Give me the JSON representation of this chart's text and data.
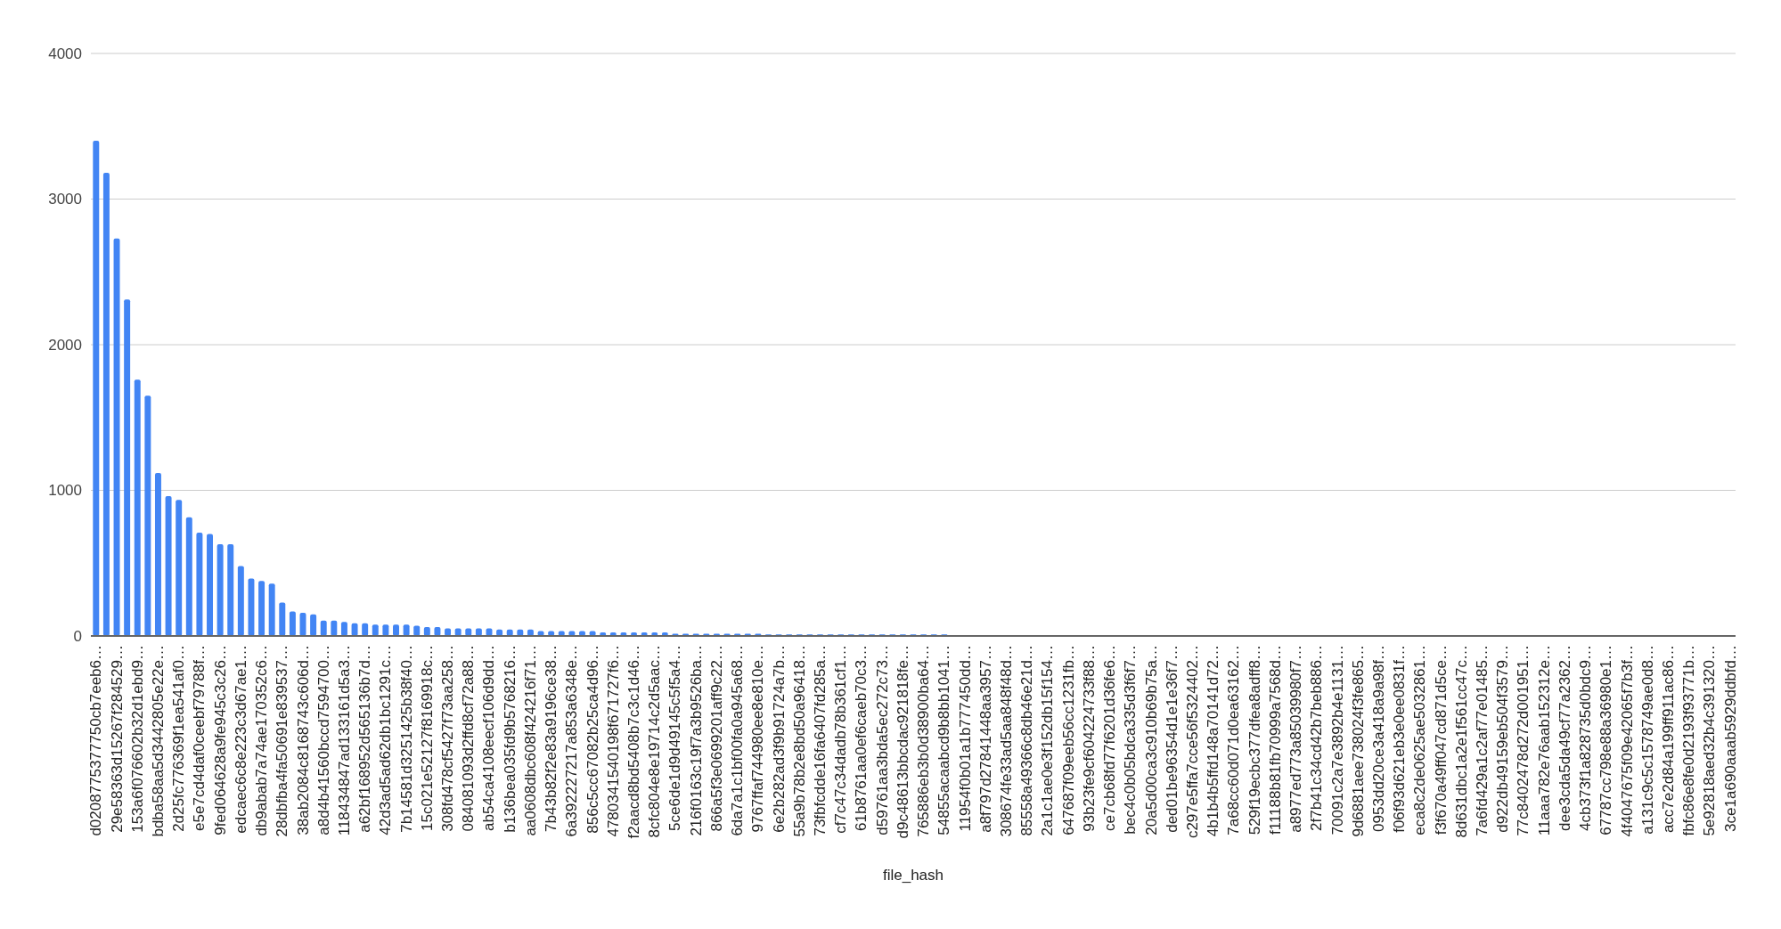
{
  "chart_data": {
    "type": "bar",
    "xlabel": "file_hash",
    "color": "#4285f4",
    "grid": "y",
    "ylim": [
      0,
      4000
    ],
    "yticks": [
      0,
      1000,
      2000,
      3000,
      4000
    ],
    "categories": [
      "d0208775377750cb7eeb6…",
      null,
      "29e58363d15267f284529…",
      null,
      "153a6f076602b32d1ebd9…",
      null,
      "bdba58aa5d3442805e22e…",
      null,
      "2d25fc776369f1ea541af0…",
      null,
      "e5e7cd4daf0ceebf79788f…",
      null,
      "9fed064628a9fe945c3c26…",
      null,
      "edcaec6c8e223c3d67ae1…",
      null,
      "db9abab7a74ae170352c6…",
      null,
      "28dbfba4fa50691e839537…",
      null,
      "38ab2084c8168743c606d…",
      null,
      "a8d4b41560bccd7594700…",
      null,
      "118434847ad133161d5a3…",
      null,
      "a62bf168952d565136b7d…",
      null,
      "42d3ad5ad62db1bc1291c…",
      null,
      "7b14581d3251425b38f40…",
      null,
      "15c021e52127f8169918c…",
      null,
      "308fd478cf5427f73aa258…",
      null,
      "084081093d2ffd8cf72a88…",
      null,
      "ab54ca4108eecf106d9dd…",
      null,
      "b136bea035fd9b5768216…",
      null,
      "aa0608dbc608f424216f71…",
      null,
      "7b43b82f2e83a9196ce38…",
      null,
      "6a392227217a853a6348e…",
      null,
      "856c5cc67082b25ca4d96…",
      null,
      "4780341540198f671727f6…",
      null,
      "f2aacd8bd5408b7c3c1d46…",
      null,
      "8cfc804e8e19714c2d5aac…",
      null,
      "5ce6de1d9d49145c5f5a4…",
      null,
      "216f0163c19f7a3b9526ba…",
      null,
      "866a5f3e0699201aff9c22…",
      null,
      "6da7a1c1bf00fa0a945a68…",
      null,
      "9767ffaf744980ee8e810e…",
      null,
      "6e2b282ad3f9b91724a7b…",
      null,
      "55a9b78b2e8bd50a96418…",
      null,
      "73fbfcdde16fa6407fd285a…",
      null,
      "cf7c47c34dadb78b361cf1…",
      null,
      "61b8761aa0ef6caeb70c3…",
      null,
      "d59761aa3bda5ec272c73…",
      null,
      "d9c48613bbcdac921818fe…",
      null,
      "765886eb3b0d38900ba64…",
      null,
      "54855acaabcd9b8bb1041…",
      null,
      "11954f0b01a1b777450dd…",
      null,
      "a8f797d27841448aa3957…",
      null,
      "308674fe33ad5aa848f48d…",
      null,
      "85558a49366c8db46e21d…",
      null,
      "2a1c1ae0e3f152db15f154…",
      null,
      "647687f09eeb56cc1231fb…",
      null,
      "93b23fe9cf604224733f88…",
      null,
      "ce7cb68fd77f6201d36fe6…",
      null,
      "bec4c0b05bdca335d3f6f7…",
      null,
      "20a5d00ca3c910b69b75a…",
      null,
      "ded01be96354d1e1e36f7…",
      null,
      "c297e5ffa7cce56f5324402…",
      null,
      "4b1b4b5ffd148a70141d72…",
      null,
      "7a68cc60d071d0ea63162…",
      null,
      "529f19ecbc377dfea8adff8…",
      null,
      "f11188b81fb70999a7568d…",
      null,
      "a8977ed773a85039980f7…",
      null,
      "2f7b41c34cd42b7beb886…",
      null,
      "70091c2a7e3892b4e1131…",
      null,
      "9d6881aee738024f3fe865…",
      null,
      "0953dd20ce3a418a9a98f…",
      null,
      "f06f93d621eb3e0ee0831f…",
      null,
      "eca8c2de0625ae5032861…",
      null,
      "f3f670a49ff047cd871d5ce…",
      null,
      "8d631dbc1a2e1f561cc47c…",
      null,
      "7a6fd429a1c2af77e01485…",
      null,
      "d922db49159eb504f3579…",
      null,
      "77c8402478d272d001951…",
      null,
      "11aaa782e76aab152312e…",
      null,
      "dee3cda5da49cf77a2362…",
      null,
      "4cb373f1a828735d0bdc9…",
      null,
      "67787cc798e88a36980e1…",
      null,
      "4f4047675f09e42065f7b3f…",
      null,
      "a131c9c5c1578749ae0d8…",
      null,
      "acc7e2d84a199ff911ac86…",
      null,
      "fbfc86e8fe0d2193f93771b…",
      null,
      "5e92818aed32b4c391320…",
      null,
      "3ce1a690aaab5929ddbfd…"
    ],
    "values": [
      3400,
      3180,
      2730,
      2310,
      1760,
      1650,
      1120,
      960,
      935,
      815,
      710,
      700,
      630,
      630,
      480,
      395,
      378,
      360,
      229,
      168,
      159,
      148,
      105,
      105,
      96,
      87,
      87,
      78,
      78,
      78,
      78,
      70,
      61,
      61,
      52,
      52,
      52,
      52,
      52,
      44,
      44,
      44,
      44,
      34,
      34,
      34,
      34,
      34,
      34,
      24,
      24,
      24,
      24,
      24,
      24,
      24,
      16,
      16,
      16,
      16,
      16,
      16,
      16,
      16,
      16,
      10,
      10,
      10,
      10,
      10,
      10,
      10,
      10,
      10,
      10,
      10,
      10,
      10,
      10,
      10,
      10,
      10,
      10,
      0,
      0,
      0,
      0,
      0,
      0,
      0,
      0,
      0,
      0,
      0,
      0,
      0,
      0,
      0,
      0,
      0,
      0,
      0,
      0,
      0,
      0,
      0,
      0,
      0,
      0,
      0,
      0,
      0,
      0,
      0,
      0,
      0,
      0,
      0,
      0,
      0,
      0,
      0,
      0,
      0,
      0,
      0,
      0,
      0,
      0,
      0,
      0,
      0,
      0,
      0,
      0,
      0,
      0,
      0,
      0,
      0,
      0,
      0,
      0,
      0,
      0,
      0,
      0,
      0,
      0,
      0,
      0,
      0,
      0,
      0,
      0,
      0,
      0,
      0,
      0
    ]
  }
}
